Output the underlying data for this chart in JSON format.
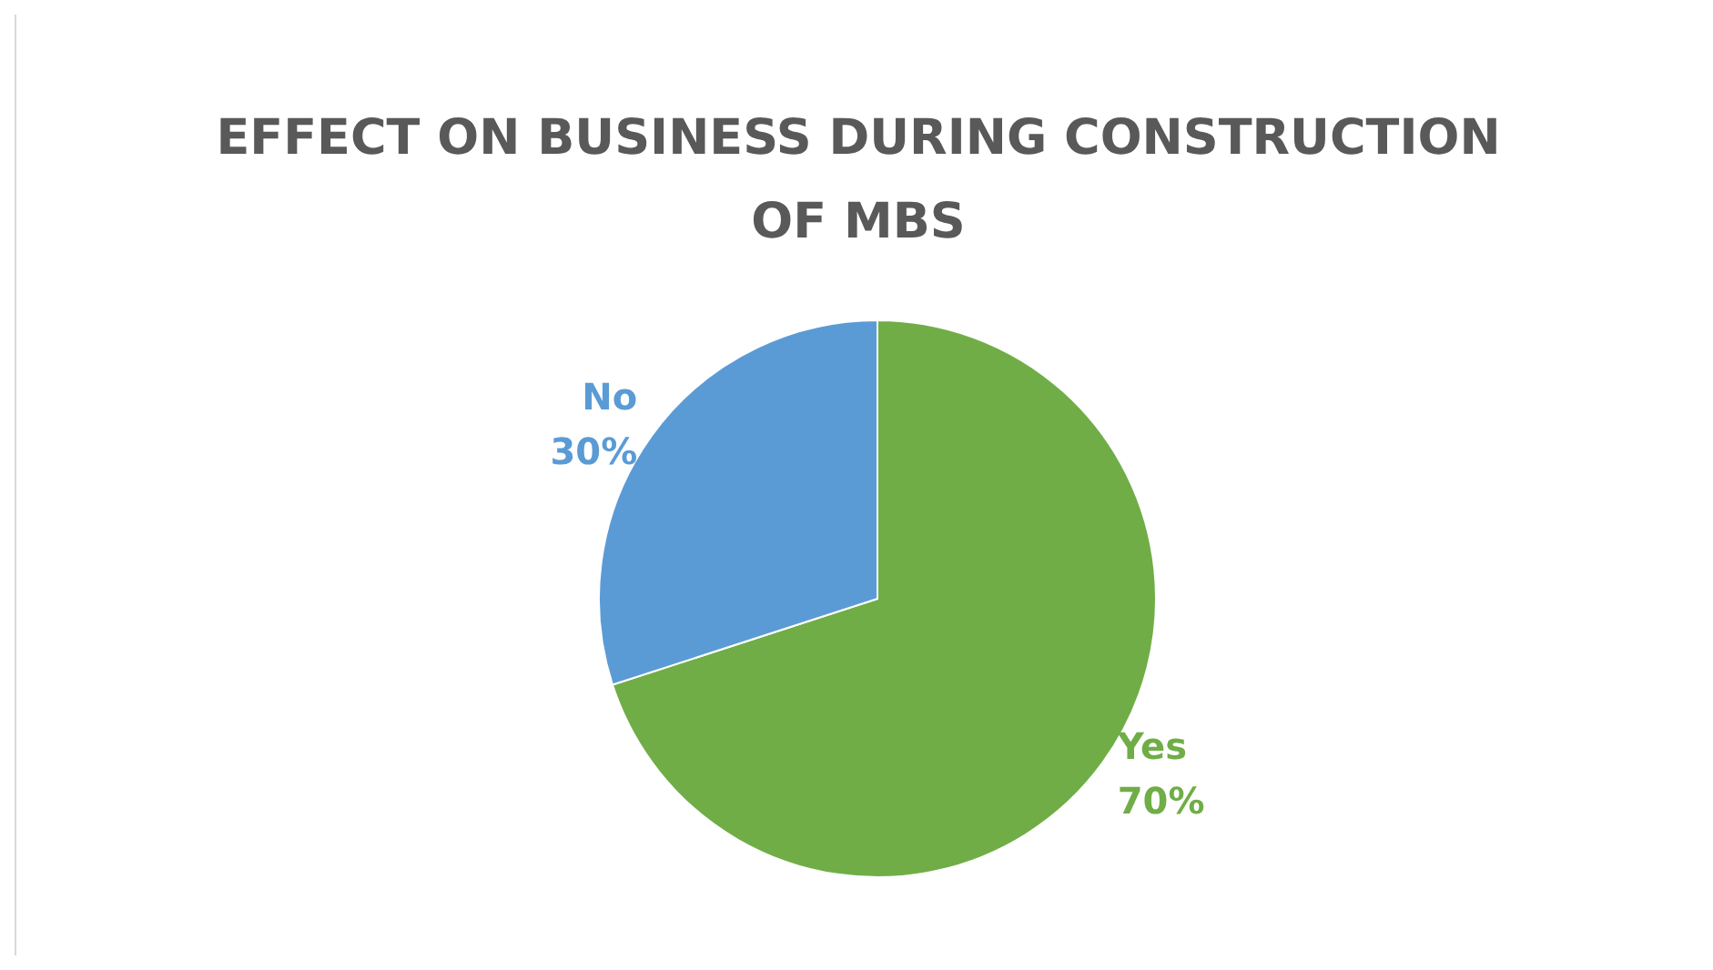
{
  "chart_data": {
    "type": "pie",
    "title": "EFFECT ON BUSINESS DURING CONSTRUCTION\nOF MBS",
    "categories": [
      "Yes",
      "No"
    ],
    "values": [
      70,
      30
    ],
    "colors": [
      "#70ad47",
      "#5b9bd5"
    ],
    "value_labels": [
      "70%",
      "30%"
    ],
    "legend": false
  }
}
